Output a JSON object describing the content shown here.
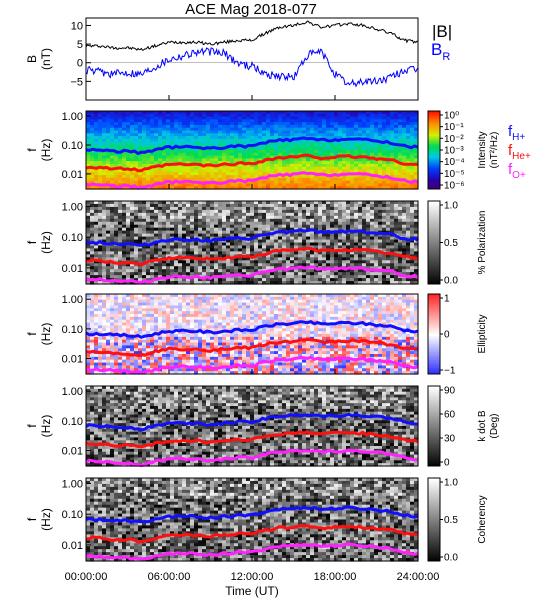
{
  "title": "ACE Mag 2018-077",
  "xaxis": {
    "label": "Time (UT)",
    "ticks": [
      "00:00:00",
      "06:00:00",
      "12:00:00",
      "18:00:00",
      "24:00:00"
    ],
    "range_hours": [
      0,
      24
    ]
  },
  "colors": {
    "B_total": "#000000",
    "B_R": "#0000ff",
    "fH": "#1010ff",
    "fHe": "#ff1010",
    "fO": "#ff22ff"
  },
  "legend": {
    "B_total": "|B|",
    "B_R": "B",
    "B_R_sub": "R",
    "f": "f",
    "fH_sub": "H+",
    "fHe_sub": "He+",
    "fO_sub": "O+"
  },
  "panels": [
    {
      "type": "line",
      "ylabel": "B",
      "yunit": "(nT)",
      "ylim": [
        -10,
        12
      ],
      "yticks": [
        "10",
        "5",
        "0",
        "−5"
      ],
      "yticks_values": [
        10,
        5,
        0,
        -5
      ]
    },
    {
      "type": "heatmap",
      "ylabel": "f",
      "yunit": "(Hz)",
      "yticks": [
        "1.00",
        "0.10",
        "0.01"
      ],
      "colormap": "rainbow",
      "colorbar_title": "Intensity",
      "colorbar_unit": "(nT²/Hz)",
      "colorbar_ticks": [
        "10⁰",
        "10⁻¹",
        "10⁻²",
        "10⁻³",
        "10⁻⁴",
        "10⁻⁵",
        "10⁻⁶"
      ],
      "colorbar_range_log10": [
        -6,
        0
      ]
    },
    {
      "type": "heatmap",
      "ylabel": "f",
      "yunit": "(Hz)",
      "yticks": [
        "1.00",
        "0.10",
        "0.01"
      ],
      "colormap": "gray",
      "colorbar_title": "% Polarization",
      "colorbar_unit": "",
      "colorbar_ticks": [
        "1.0",
        "0.5",
        "0.0"
      ],
      "colorbar_range": [
        0,
        1
      ]
    },
    {
      "type": "heatmap",
      "ylabel": "f",
      "yunit": "(Hz)",
      "yticks": [
        "1.00",
        "0.10",
        "0.01"
      ],
      "colormap": "blue-white-red",
      "colorbar_title": "Ellipticity",
      "colorbar_unit": "",
      "colorbar_ticks": [
        "1",
        "0",
        "−1"
      ],
      "colorbar_range": [
        -1,
        1
      ]
    },
    {
      "type": "heatmap",
      "ylabel": "f",
      "yunit": "(Hz)",
      "yticks": [
        "1.00",
        "0.10",
        "0.01"
      ],
      "colormap": "gray",
      "colorbar_title": "k dot B",
      "colorbar_unit": "(Deg)",
      "colorbar_ticks": [
        "90",
        "60",
        "30",
        "0"
      ],
      "colorbar_range": [
        0,
        90
      ]
    },
    {
      "type": "heatmap",
      "ylabel": "f",
      "yunit": "(Hz)",
      "yticks": [
        "1.00",
        "0.10",
        "0.01"
      ],
      "colormap": "gray",
      "colorbar_title": "Coherency",
      "colorbar_unit": "",
      "colorbar_ticks": [
        "1.0",
        "0.5",
        "0.0"
      ],
      "colorbar_range": [
        0,
        1
      ]
    }
  ],
  "chart_data": {
    "type": "line",
    "title": "ACE Mag 2018-077",
    "xlabel": "Time (UT)",
    "x_hours": [
      0,
      1,
      2,
      3,
      4,
      5,
      6,
      7,
      8,
      9,
      10,
      11,
      12,
      13,
      14,
      15,
      16,
      17,
      18,
      19,
      20,
      21,
      22,
      23,
      24
    ],
    "series": [
      {
        "name": "|B|",
        "values": [
          4.5,
          4.5,
          4.0,
          4.0,
          3.5,
          4.5,
          5.5,
          5.5,
          5.5,
          5.0,
          5.5,
          6.0,
          6.0,
          8.0,
          9.5,
          10.0,
          11.0,
          9.5,
          10.0,
          10.5,
          10.0,
          9.0,
          8.0,
          6.0,
          5.5
        ]
      },
      {
        "name": "B_R",
        "values": [
          -2.0,
          -2.5,
          -3.0,
          -2.5,
          -3.0,
          -1.0,
          1.0,
          2.0,
          3.0,
          3.0,
          2.5,
          0.0,
          -1.0,
          -3.0,
          -3.5,
          -4.0,
          2.0,
          3.0,
          -3.0,
          -6.0,
          -5.0,
          -5.0,
          -4.0,
          -2.0,
          -2.0
        ]
      }
    ],
    "ylim": [
      -10,
      12
    ],
    "ylabel": "B (nT)",
    "cutoff_frequencies_hz": {
      "x_hours": [
        0,
        1,
        2,
        3,
        4,
        5,
        6,
        7,
        8,
        9,
        10,
        11,
        12,
        13,
        14,
        15,
        16,
        17,
        18,
        19,
        20,
        21,
        22,
        23,
        24
      ],
      "fH+": [
        0.068,
        0.068,
        0.061,
        0.061,
        0.053,
        0.068,
        0.084,
        0.084,
        0.084,
        0.076,
        0.084,
        0.091,
        0.091,
        0.122,
        0.145,
        0.152,
        0.168,
        0.145,
        0.152,
        0.16,
        0.152,
        0.137,
        0.122,
        0.091,
        0.084
      ],
      "fHe+": [
        0.017,
        0.017,
        0.015,
        0.015,
        0.013,
        0.017,
        0.021,
        0.021,
        0.021,
        0.019,
        0.021,
        0.023,
        0.023,
        0.03,
        0.036,
        0.038,
        0.042,
        0.036,
        0.038,
        0.04,
        0.038,
        0.034,
        0.03,
        0.023,
        0.021
      ],
      "fO+": [
        0.0043,
        0.0043,
        0.0038,
        0.0038,
        0.0033,
        0.0043,
        0.0052,
        0.0052,
        0.0052,
        0.0048,
        0.0052,
        0.0057,
        0.0057,
        0.0076,
        0.0091,
        0.0095,
        0.0105,
        0.0091,
        0.0095,
        0.01,
        0.0095,
        0.0086,
        0.0076,
        0.0057,
        0.0052
      ]
    },
    "frequency_axis_hz": [
      0.003,
      1.5
    ]
  }
}
